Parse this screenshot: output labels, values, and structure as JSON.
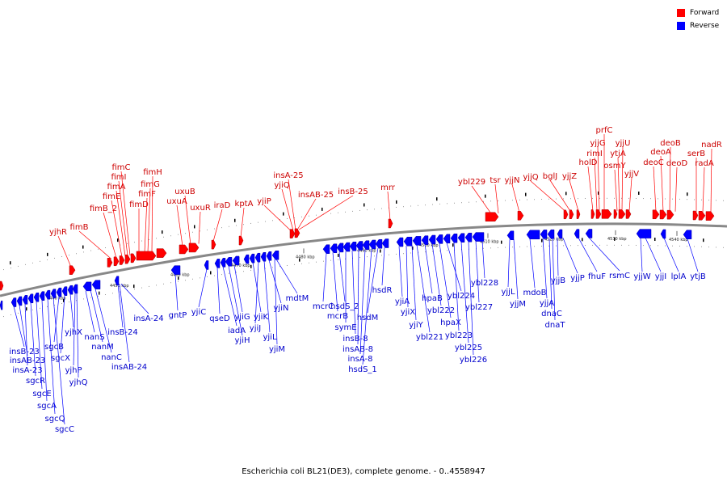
{
  "legend": [
    {
      "label": "Forward",
      "color": "#ff0000"
    },
    {
      "label": "Reverse",
      "color": "#0000ff"
    }
  ],
  "caption": "Escherichia coli BL21(DE3), complete genome. - 0..4558947",
  "colors": {
    "forward": "#ff0000",
    "reverse": "#0000ff",
    "track": "#888888"
  },
  "kbp_ticks": [
    "4440 kbp",
    "4450 kbp",
    "4460 kbp",
    "4470 kbp",
    "4480 kbp",
    "4490 kbp",
    "4500 kbp",
    "4510 kbp",
    "4520 kbp",
    "4530 kbp",
    "4540 kbp"
  ],
  "forward_genes": [
    "yjhR",
    "fimB",
    "fimB_2",
    "fimE",
    "fimA",
    "fimI",
    "fimC",
    "fimD",
    "fimF",
    "fimG",
    "fimH",
    "uxuA",
    "uxuB",
    "uxuR",
    "iraD",
    "kptA",
    "yjiP",
    "yjiQ",
    "insA-25",
    "insAB-25",
    "insB-25",
    "mrr",
    "ybl229",
    "tsr",
    "yjjN",
    "yjjQ",
    "bglJ",
    "yjjZ",
    "holD",
    "rimI",
    "yjjG",
    "prfC",
    "osmY",
    "ytjA",
    "yjjU",
    "yjjV",
    "deoC",
    "deoA",
    "deoB",
    "deoD",
    "serB",
    "radA",
    "nadR"
  ],
  "reverse_genes": [
    "insB-23",
    "insAB-23",
    "insA-23",
    "sgcR",
    "sgcE",
    "sgcA",
    "sgcQ",
    "sgcC",
    "sgcB",
    "sgcX",
    "yjhX",
    "yjhP",
    "yjhQ",
    "nanS",
    "nanM",
    "nanC",
    "insB-24",
    "insAB-24",
    "insA-24",
    "gntP",
    "yjiC",
    "qseD",
    "iadA",
    "yjiH",
    "yjiG",
    "yjiK",
    "yjiJ",
    "yjiL",
    "yjiN",
    "yjiM",
    "mdtM",
    "mcrC",
    "mcrB",
    "hsdS_2",
    "symE",
    "insB-8",
    "insAB-8",
    "insA-8",
    "hsdS_1",
    "hsdM",
    "hsdR",
    "yjiA",
    "yjiX",
    "yjiY",
    "ybl221",
    "hpaB",
    "ybl222",
    "hpaX",
    "ybl224",
    "ybl223",
    "ybl225",
    "ybl226",
    "ybl227",
    "ybl228",
    "yjjL",
    "yjjM",
    "mdoB",
    "yjjA",
    "dnaC",
    "dnaT",
    "yjjB",
    "yjjP",
    "fhuF",
    "rsmC",
    "yjjW",
    "yjjI",
    "lplA",
    "ytjB"
  ]
}
